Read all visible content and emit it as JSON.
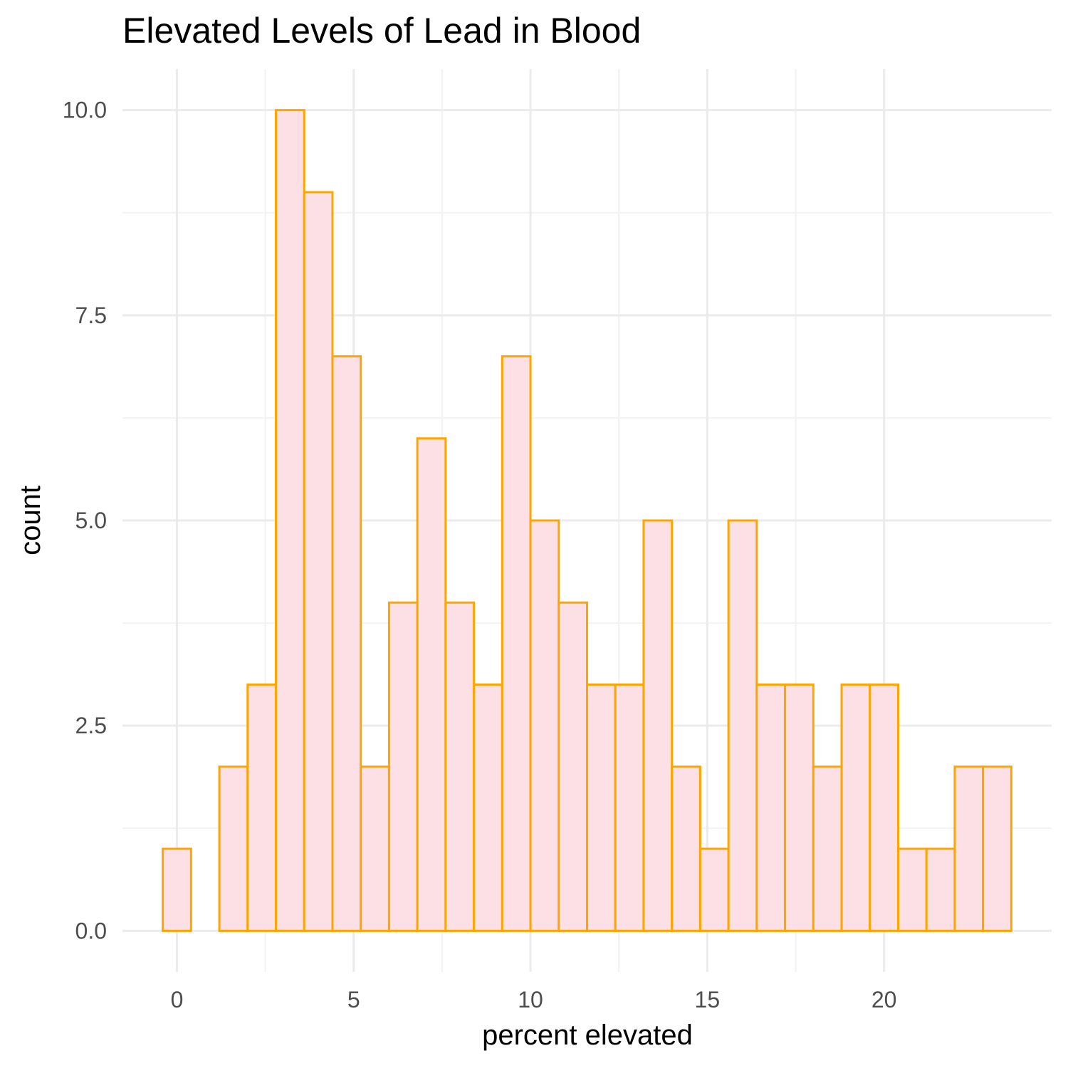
{
  "chart_data": {
    "type": "bar",
    "title": "Elevated Levels of Lead in Blood",
    "xlabel": "percent elevated",
    "ylabel": "count",
    "bin_width": 0.8,
    "bins": [
      {
        "center": 0.0,
        "count": 1
      },
      {
        "center": 0.8,
        "count": 0
      },
      {
        "center": 1.6,
        "count": 2
      },
      {
        "center": 2.4,
        "count": 3
      },
      {
        "center": 3.2,
        "count": 10
      },
      {
        "center": 4.0,
        "count": 9
      },
      {
        "center": 4.8,
        "count": 7
      },
      {
        "center": 5.6,
        "count": 2
      },
      {
        "center": 6.4,
        "count": 4
      },
      {
        "center": 7.2,
        "count": 6
      },
      {
        "center": 8.0,
        "count": 4
      },
      {
        "center": 8.8,
        "count": 3
      },
      {
        "center": 9.6,
        "count": 7
      },
      {
        "center": 10.4,
        "count": 5
      },
      {
        "center": 11.2,
        "count": 4
      },
      {
        "center": 12.0,
        "count": 3
      },
      {
        "center": 12.8,
        "count": 3
      },
      {
        "center": 13.6,
        "count": 5
      },
      {
        "center": 14.4,
        "count": 2
      },
      {
        "center": 15.2,
        "count": 1
      },
      {
        "center": 16.0,
        "count": 5
      },
      {
        "center": 16.8,
        "count": 3
      },
      {
        "center": 17.6,
        "count": 3
      },
      {
        "center": 18.4,
        "count": 2
      },
      {
        "center": 19.2,
        "count": 3
      },
      {
        "center": 20.0,
        "count": 3
      },
      {
        "center": 20.8,
        "count": 1
      },
      {
        "center": 21.6,
        "count": 1
      },
      {
        "center": 22.4,
        "count": 2
      },
      {
        "center": 23.2,
        "count": 2
      }
    ],
    "xlim": [
      -1.54,
      24.74
    ],
    "ylim": [
      -0.5,
      10.5
    ],
    "x_ticks": [
      0,
      5,
      10,
      15,
      20
    ],
    "x_tick_labels": [
      "0",
      "5",
      "10",
      "15",
      "20"
    ],
    "y_ticks": [
      0,
      2.5,
      5,
      7.5,
      10
    ],
    "y_tick_labels": [
      "0.0",
      "2.5",
      "5.0",
      "7.5",
      "10.0"
    ],
    "grid": true,
    "legend": "none",
    "colors": {
      "bar_fill": "#fde0e6",
      "bar_stroke": "#ffa500",
      "grid_major": "#ebebeb",
      "grid_minor": "#f2f2f2"
    }
  }
}
